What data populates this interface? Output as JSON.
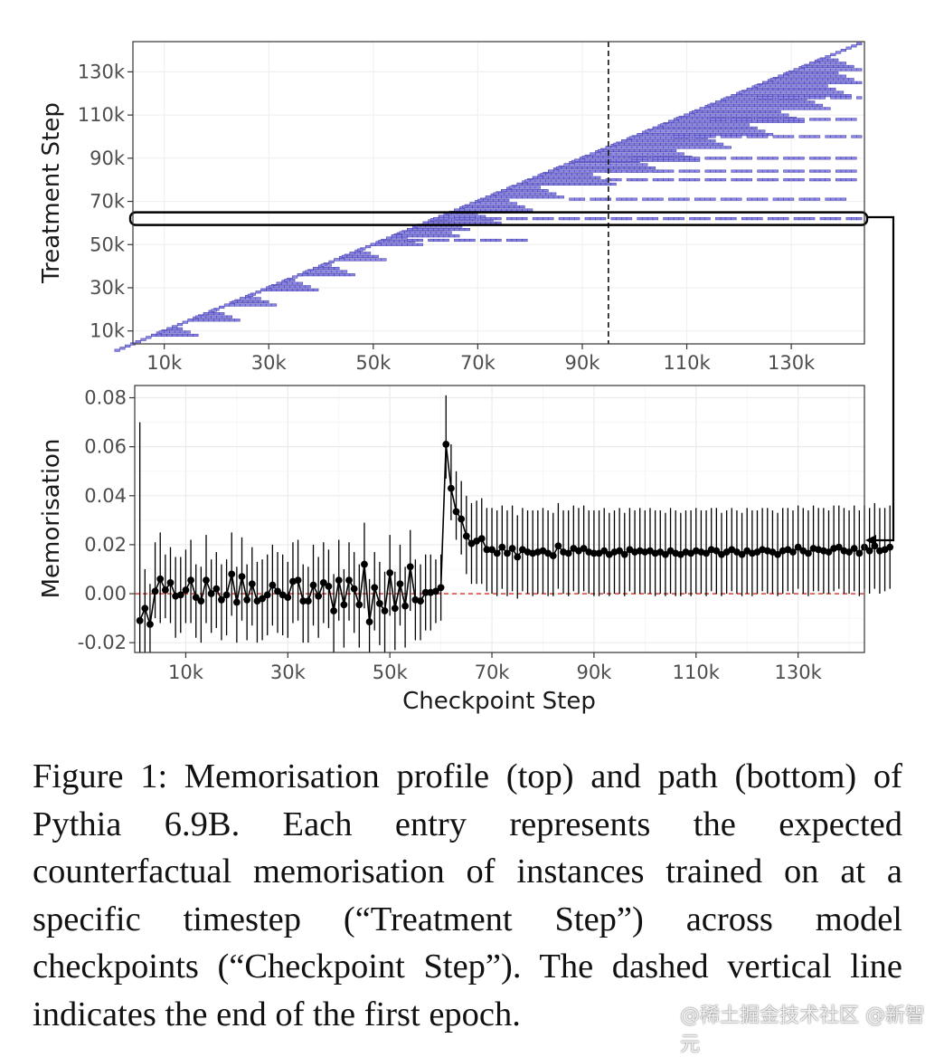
{
  "chart_data": [
    {
      "type": "heatmap",
      "name": "memorisation-profile",
      "title": "",
      "xlabel": "",
      "ylabel": "Treatment Step",
      "xlim": [
        4000,
        144000
      ],
      "ylim": [
        4000,
        144000
      ],
      "xticks": [
        "10k",
        "30k",
        "50k",
        "70k",
        "90k",
        "110k",
        "130k"
      ],
      "xtick_values": [
        10000,
        30000,
        50000,
        70000,
        90000,
        110000,
        130000
      ],
      "yticks": [
        "10k",
        "30k",
        "50k",
        "70k",
        "90k",
        "110k",
        "130k"
      ],
      "ytick_values": [
        10000,
        30000,
        50000,
        70000,
        90000,
        110000,
        130000
      ],
      "cell_color": "#8c86e6",
      "cell_edge_color": "#3f3aa6",
      "diagonal": {
        "from": 1000,
        "to": 143000
      },
      "rows": [
        {
          "y": 8000,
          "end": 16000
        },
        {
          "y": 15000,
          "end": 24000
        },
        {
          "y": 22000,
          "end": 31000
        },
        {
          "y": 29000,
          "end": 39000
        },
        {
          "y": 36000,
          "end": 46000
        },
        {
          "y": 43000,
          "end": 52000
        },
        {
          "y": 50000,
          "end": 59000
        },
        {
          "y": 54000,
          "end": 66000
        },
        {
          "y": 57000,
          "end": 68000
        },
        {
          "y": 60000,
          "end": 74000
        },
        {
          "y": 66000,
          "end": 80000
        },
        {
          "y": 72000,
          "end": 86000
        },
        {
          "y": 78000,
          "end": 96000
        },
        {
          "y": 84000,
          "end": 105000
        },
        {
          "y": 89000,
          "end": 112000
        },
        {
          "y": 95000,
          "end": 118000
        },
        {
          "y": 101000,
          "end": 126000
        },
        {
          "y": 107000,
          "end": 132000
        },
        {
          "y": 113000,
          "end": 137000
        },
        {
          "y": 119000,
          "end": 141000
        },
        {
          "y": 125000,
          "end": 143000
        },
        {
          "y": 131000,
          "end": 143000
        }
      ],
      "bands": [
        {
          "y": 52000,
          "start": 57000,
          "end": 80000
        },
        {
          "y": 62000,
          "start": 62000,
          "end": 143000
        },
        {
          "y": 71000,
          "start": 88000,
          "end": 140000
        },
        {
          "y": 80000,
          "start": 95000,
          "end": 143000
        },
        {
          "y": 84000,
          "start": 95000,
          "end": 143000
        },
        {
          "y": 90000,
          "start": 100000,
          "end": 143000
        },
        {
          "y": 100000,
          "start": 108000,
          "end": 143000
        },
        {
          "y": 108000,
          "start": 115000,
          "end": 143000
        },
        {
          "y": 118000,
          "start": 124000,
          "end": 143000
        }
      ],
      "epoch_end_x": 95000,
      "highlight_row": {
        "y": 62000,
        "label": ""
      }
    },
    {
      "type": "line",
      "name": "memorisation-path",
      "title": "",
      "xlabel": "Checkpoint Step",
      "ylabel": "Memorisation",
      "xlim": [
        0,
        143000
      ],
      "ylim": [
        -0.024,
        0.085
      ],
      "xticks": [
        "10k",
        "30k",
        "50k",
        "70k",
        "90k",
        "110k",
        "130k"
      ],
      "xtick_values": [
        10000,
        30000,
        50000,
        70000,
        90000,
        110000,
        130000
      ],
      "yticks": [
        "0.08",
        "0.06",
        "0.04",
        "0.02",
        "0.00",
        "-0.02"
      ],
      "ytick_values": [
        0.08,
        0.06,
        0.04,
        0.02,
        0.0,
        -0.02
      ],
      "reference_line": {
        "y": 0.0,
        "color": "#d62d20",
        "style": "dashed"
      },
      "marker_color": "#000000",
      "x_start": 1000,
      "x_step": 1000,
      "values": [
        -0.011,
        -0.006,
        -0.0125,
        0.001,
        0.006,
        0.0015,
        0.0045,
        -0.001,
        -0.0005,
        0.0015,
        0.0055,
        -0.0015,
        -0.003,
        0.0055,
        0.0,
        0.002,
        -0.0025,
        -0.0005,
        0.008,
        -0.0035,
        0.007,
        -0.0025,
        0.004,
        -0.003,
        -0.002,
        -0.0005,
        0.0035,
        0.001,
        -0.0005,
        -0.0015,
        0.005,
        0.0055,
        -0.003,
        -0.003,
        0.0035,
        -0.001,
        0.0045,
        0.003,
        -0.007,
        0.0055,
        -0.0045,
        0.0055,
        0.002,
        -0.0045,
        0.012,
        -0.0115,
        0.0025,
        -0.004,
        -0.007,
        0.0085,
        -0.006,
        0.004,
        -0.005,
        0.011,
        -0.0025,
        -0.003,
        0.0005,
        0.0005,
        0.001,
        0.0025,
        0.061,
        0.043,
        0.0335,
        0.0305,
        0.0235,
        0.0205,
        0.0215,
        0.0225,
        0.018,
        0.018,
        0.0165,
        0.019,
        0.0165,
        0.0185,
        0.015,
        0.018,
        0.017,
        0.0165,
        0.017,
        0.0175,
        0.0165,
        0.0155,
        0.0195,
        0.017,
        0.0165,
        0.0185,
        0.0175,
        0.0185,
        0.017,
        0.0165,
        0.0165,
        0.0175,
        0.016,
        0.017,
        0.0175,
        0.016,
        0.018,
        0.017,
        0.0175,
        0.017,
        0.0175,
        0.0165,
        0.017,
        0.016,
        0.0175,
        0.0165,
        0.016,
        0.017,
        0.0165,
        0.0175,
        0.017,
        0.0165,
        0.018,
        0.0175,
        0.016,
        0.017,
        0.018,
        0.017,
        0.016,
        0.0175,
        0.0165,
        0.017,
        0.018,
        0.0175,
        0.017,
        0.016,
        0.0175,
        0.018,
        0.017,
        0.019,
        0.0175,
        0.0165,
        0.0185,
        0.018,
        0.0175,
        0.017,
        0.0185,
        0.019,
        0.0175,
        0.017,
        0.0185,
        0.0165,
        0.019,
        0.0175,
        0.0195,
        0.0175,
        0.018,
        0.019
      ],
      "error_lower": [
        -0.026,
        -0.026,
        -0.026,
        -0.01,
        -0.012,
        -0.01,
        -0.012,
        -0.018,
        -0.016,
        -0.012,
        -0.012,
        -0.018,
        -0.02,
        -0.012,
        -0.016,
        -0.014,
        -0.019,
        -0.017,
        -0.009,
        -0.02,
        -0.011,
        -0.019,
        -0.013,
        -0.02,
        -0.019,
        -0.017,
        -0.013,
        -0.016,
        -0.017,
        -0.018,
        -0.012,
        -0.011,
        -0.02,
        -0.02,
        -0.013,
        -0.018,
        -0.012,
        -0.014,
        -0.024,
        -0.011,
        -0.022,
        -0.011,
        -0.016,
        -0.022,
        -0.006,
        -0.025,
        -0.015,
        -0.021,
        -0.024,
        -0.009,
        -0.023,
        -0.013,
        -0.022,
        -0.007,
        -0.019,
        -0.019,
        -0.015,
        -0.015,
        -0.012,
        -0.011,
        0.047,
        0.03,
        0.022,
        0.016,
        0.008,
        0.004,
        0.004,
        0.004,
        0.001,
        0.0,
        -0.001,
        0.002,
        -0.001,
        0.001,
        -0.002,
        0.001,
        0.0,
        -0.001,
        0.0,
        0.0,
        -0.001,
        -0.001,
        0.002,
        0.0,
        -0.001,
        0.001,
        0.0,
        0.001,
        0.0,
        -0.001,
        -0.001,
        0.0,
        -0.001,
        0.0,
        0.0,
        -0.001,
        0.001,
        0.0,
        0.0,
        0.0,
        0.0,
        -0.001,
        0.0,
        -0.001,
        0.0,
        -0.001,
        -0.001,
        0.0,
        -0.001,
        0.0,
        0.0,
        -0.001,
        0.001,
        0.0,
        -0.001,
        0.0,
        0.001,
        0.0,
        -0.001,
        0.0,
        -0.001,
        0.0,
        0.001,
        0.0,
        0.0,
        -0.001,
        0.0,
        0.001,
        0.0,
        0.002,
        0.0,
        -0.001,
        0.001,
        0.001,
        0.0,
        0.0,
        0.001,
        0.002,
        0.0,
        0.0,
        0.001,
        -0.001,
        0.002,
        0.0,
        0.002,
        0.0,
        0.001,
        0.002
      ],
      "error_upper": [
        0.07,
        0.01,
        0.004,
        0.021,
        0.025,
        0.016,
        0.019,
        0.015,
        0.015,
        0.018,
        0.022,
        0.012,
        0.011,
        0.024,
        0.014,
        0.017,
        0.012,
        0.014,
        0.025,
        0.011,
        0.023,
        0.012,
        0.019,
        0.013,
        0.014,
        0.016,
        0.02,
        0.017,
        0.016,
        0.013,
        0.021,
        0.022,
        0.012,
        0.011,
        0.02,
        0.015,
        0.021,
        0.018,
        0.008,
        0.022,
        0.01,
        0.021,
        0.017,
        0.012,
        0.029,
        0.006,
        0.017,
        0.013,
        0.009,
        0.024,
        0.009,
        0.02,
        0.011,
        0.026,
        0.014,
        0.012,
        0.016,
        0.016,
        0.014,
        0.016,
        0.081,
        0.061,
        0.05,
        0.046,
        0.04,
        0.037,
        0.038,
        0.039,
        0.035,
        0.035,
        0.034,
        0.036,
        0.034,
        0.036,
        0.032,
        0.035,
        0.034,
        0.034,
        0.034,
        0.035,
        0.034,
        0.033,
        0.037,
        0.034,
        0.034,
        0.036,
        0.035,
        0.036,
        0.034,
        0.034,
        0.034,
        0.035,
        0.033,
        0.034,
        0.035,
        0.033,
        0.035,
        0.034,
        0.035,
        0.034,
        0.035,
        0.034,
        0.034,
        0.033,
        0.035,
        0.034,
        0.033,
        0.034,
        0.034,
        0.035,
        0.034,
        0.034,
        0.035,
        0.035,
        0.033,
        0.034,
        0.035,
        0.034,
        0.033,
        0.035,
        0.034,
        0.034,
        0.035,
        0.035,
        0.034,
        0.033,
        0.035,
        0.035,
        0.034,
        0.036,
        0.035,
        0.034,
        0.036,
        0.035,
        0.035,
        0.034,
        0.036,
        0.036,
        0.035,
        0.034,
        0.036,
        0.034,
        0.036,
        0.035,
        0.037,
        0.035,
        0.035,
        0.036
      ]
    }
  ],
  "caption": "Figure 1: Memorisation profile (top) and path (bottom) of Pythia 6.9B.  Each entry represents the expected counterfactual memorisation of instances trained on at a specific timestep (“Treatment Step”) across model checkpoints (“Checkpoint Step”). The dashed vertical line indicates the end of the first epoch.",
  "watermark": "@稀土掘金技术社区 @新智元",
  "colors": {
    "panel_background": "#ffffff",
    "grid": "#ebebeb",
    "panel_border": "#333333",
    "tick_text": "#4d4d4d",
    "heat_fill": "#8c86e6",
    "heat_edge": "#3f3aa6",
    "ref_line": "#d62d20"
  }
}
